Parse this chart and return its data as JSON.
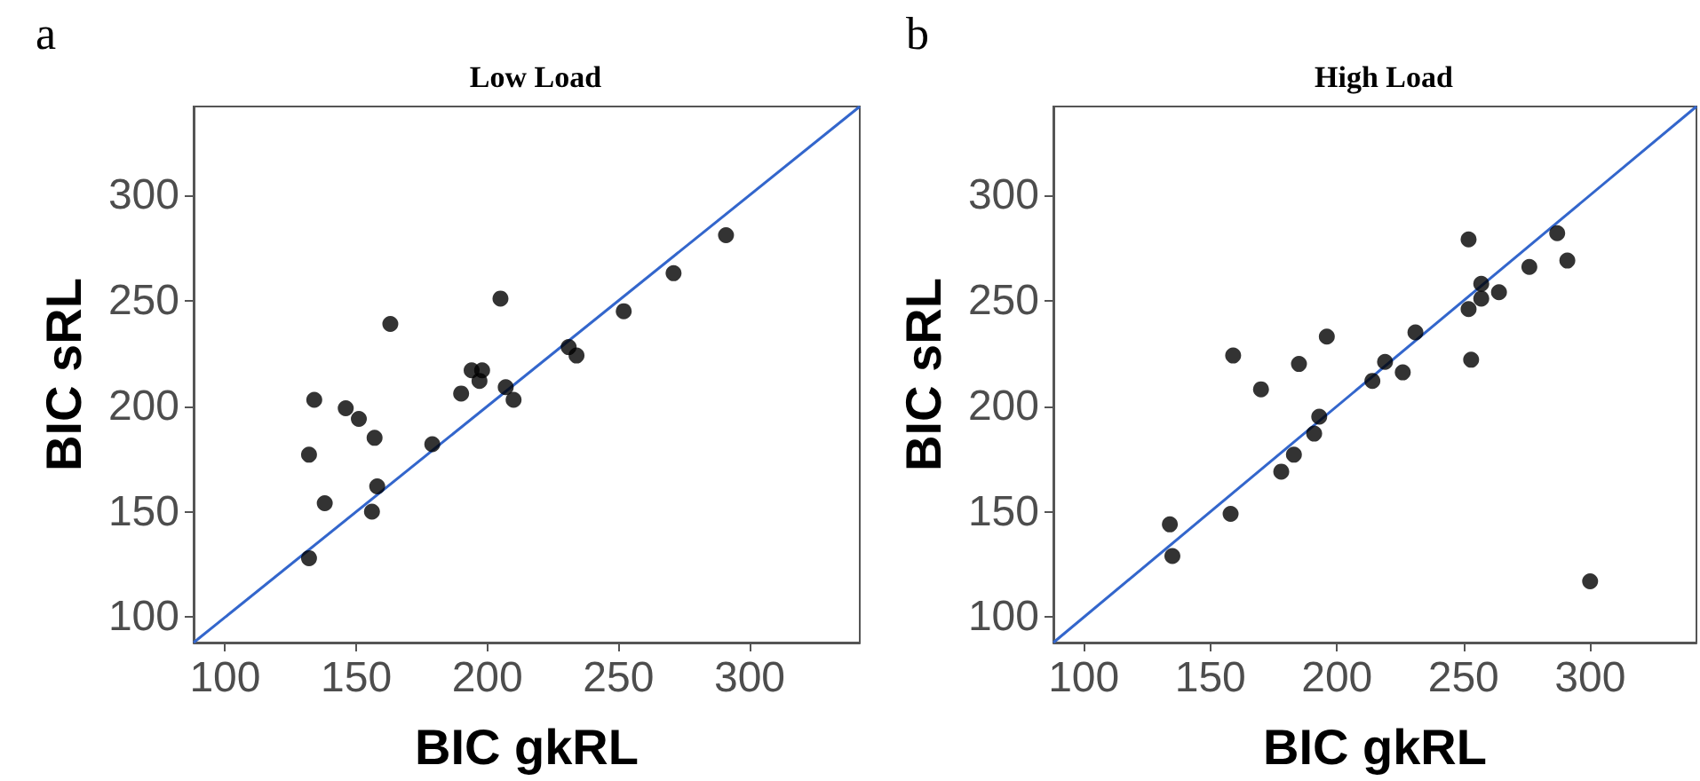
{
  "chart_data": [
    {
      "type": "scatter",
      "title": "Low Load",
      "xlabel": "BIC gkRL",
      "ylabel": "BIC sRL",
      "annotations": [
        "a"
      ],
      "xlim": [
        88,
        342
      ],
      "ylim": [
        88,
        342
      ],
      "xticks": [
        100,
        150,
        200,
        250,
        300
      ],
      "yticks": [
        100,
        150,
        200,
        250,
        300
      ],
      "series": [
        {
          "type": "line",
          "color": "#3366cc",
          "marker": "none",
          "line_style": "solid",
          "x": [
            88,
            342
          ],
          "values": [
            88,
            342
          ]
        },
        {
          "color": "#000000",
          "marker": "circle",
          "x": [
            132,
            134,
            138,
            132,
            146,
            151,
            157,
            158,
            156,
            163,
            179,
            190,
            194,
            198,
            197,
            205,
            207,
            210,
            231,
            234,
            252,
            271,
            291
          ],
          "values": [
            177,
            203,
            154,
            128,
            199,
            194,
            185,
            162,
            150,
            239,
            182,
            206,
            217,
            217,
            212,
            251,
            209,
            203,
            228,
            224,
            245,
            263,
            281
          ]
        }
      ]
    },
    {
      "type": "scatter",
      "title": "High Load",
      "xlabel": "BIC gkRL",
      "ylabel": "BIC sRL",
      "annotations": [
        "b"
      ],
      "xlim": [
        88,
        342
      ],
      "ylim": [
        88,
        342
      ],
      "xticks": [
        100,
        150,
        200,
        250,
        300
      ],
      "yticks": [
        100,
        150,
        200,
        250,
        300
      ],
      "series": [
        {
          "type": "line",
          "color": "#3366cc",
          "marker": "none",
          "line_style": "solid",
          "x": [
            88,
            342
          ],
          "values": [
            88,
            342
          ]
        },
        {
          "color": "#000000",
          "marker": "circle",
          "x": [
            134,
            135,
            158,
            159,
            170,
            178,
            183,
            185,
            191,
            193,
            196,
            214,
            219,
            226,
            231,
            252,
            252,
            253,
            257,
            257,
            264,
            276,
            287,
            291,
            300
          ],
          "values": [
            144,
            129,
            149,
            224,
            208,
            169,
            177,
            220,
            187,
            195,
            233,
            212,
            221,
            216,
            235,
            279,
            246,
            222,
            258,
            251,
            254,
            266,
            282,
            269,
            117
          ]
        }
      ]
    }
  ]
}
